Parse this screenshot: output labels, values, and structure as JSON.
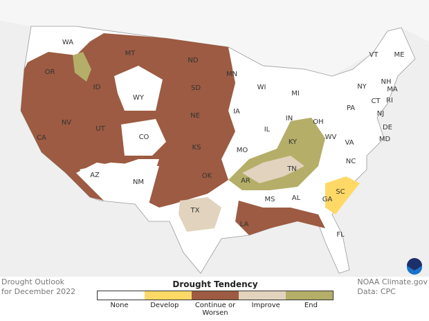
{
  "caption_left": [
    "Drought Outlook",
    "for December 2022"
  ],
  "caption_right": [
    "NOAA Climate.gov",
    "Data: CPC"
  ],
  "logo": "NOAA",
  "legend": {
    "title": "Drought Tendency",
    "items": [
      {
        "label": "None",
        "color": "#ffffff"
      },
      {
        "label": "Develop",
        "color": "#ffd966"
      },
      {
        "label": "Continue or Worsen",
        "color": "#9c5b42"
      },
      {
        "label": "Improve",
        "color": "#e1d3bd"
      },
      {
        "label": "End",
        "color": "#b4ae68"
      }
    ]
  },
  "states": [
    "WA",
    "OR",
    "ID",
    "MT",
    "ND",
    "SD",
    "WY",
    "NE",
    "NV",
    "UT",
    "CO",
    "KS",
    "CA",
    "AZ",
    "NM",
    "OK",
    "TX",
    "MN",
    "WI",
    "IA",
    "IL",
    "MO",
    "AR",
    "LA",
    "MS",
    "AL",
    "TN",
    "KY",
    "IN",
    "MI",
    "OH",
    "WV",
    "VA",
    "NC",
    "SC",
    "GA",
    "FL",
    "PA",
    "NY",
    "VT",
    "NH",
    "ME",
    "MA",
    "RI",
    "CT",
    "NJ",
    "DE",
    "MD"
  ]
}
